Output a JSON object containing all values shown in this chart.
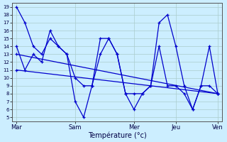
{
  "xlabel": "Température (°c)",
  "background_color": "#cceeff",
  "grid_color": "#aacccc",
  "line_color": "#0000cc",
  "ylim": [
    5,
    19
  ],
  "yticks": [
    5,
    6,
    7,
    8,
    9,
    10,
    11,
    12,
    13,
    14,
    15,
    16,
    17,
    18,
    19
  ],
  "xtick_labels": [
    "Mar",
    "Sam",
    "Mer",
    "Jeu",
    "Ven"
  ],
  "xtick_positions": [
    0,
    7,
    14,
    19,
    24
  ],
  "xlim": [
    0,
    25
  ],
  "series1_x": [
    0,
    1,
    2,
    3,
    4,
    5,
    6,
    7,
    8,
    9,
    10,
    11,
    12,
    13,
    14,
    15,
    16,
    17,
    18,
    19,
    20,
    21,
    22,
    23,
    24
  ],
  "series1_y": [
    19,
    17,
    14,
    13,
    15,
    14,
    13,
    7,
    5,
    9,
    15,
    15,
    13,
    8,
    6,
    8,
    9,
    17,
    18,
    14,
    9,
    6,
    9,
    14,
    8
  ],
  "series2_x": [
    0,
    1,
    2,
    3,
    4,
    5,
    6,
    7,
    8,
    9,
    10,
    11,
    12,
    13,
    14,
    15,
    16,
    17,
    18,
    19,
    20,
    21,
    22,
    23,
    24
  ],
  "series2_y": [
    14,
    11,
    13,
    12,
    16,
    14,
    13,
    10,
    9,
    9,
    13,
    15,
    13,
    8,
    8,
    8,
    9,
    14,
    9,
    9,
    8,
    6,
    9,
    9,
    8
  ],
  "series3_x": [
    0,
    24
  ],
  "series3_y": [
    13,
    8
  ],
  "series4_x": [
    0,
    24
  ],
  "series4_y": [
    11,
    8
  ]
}
